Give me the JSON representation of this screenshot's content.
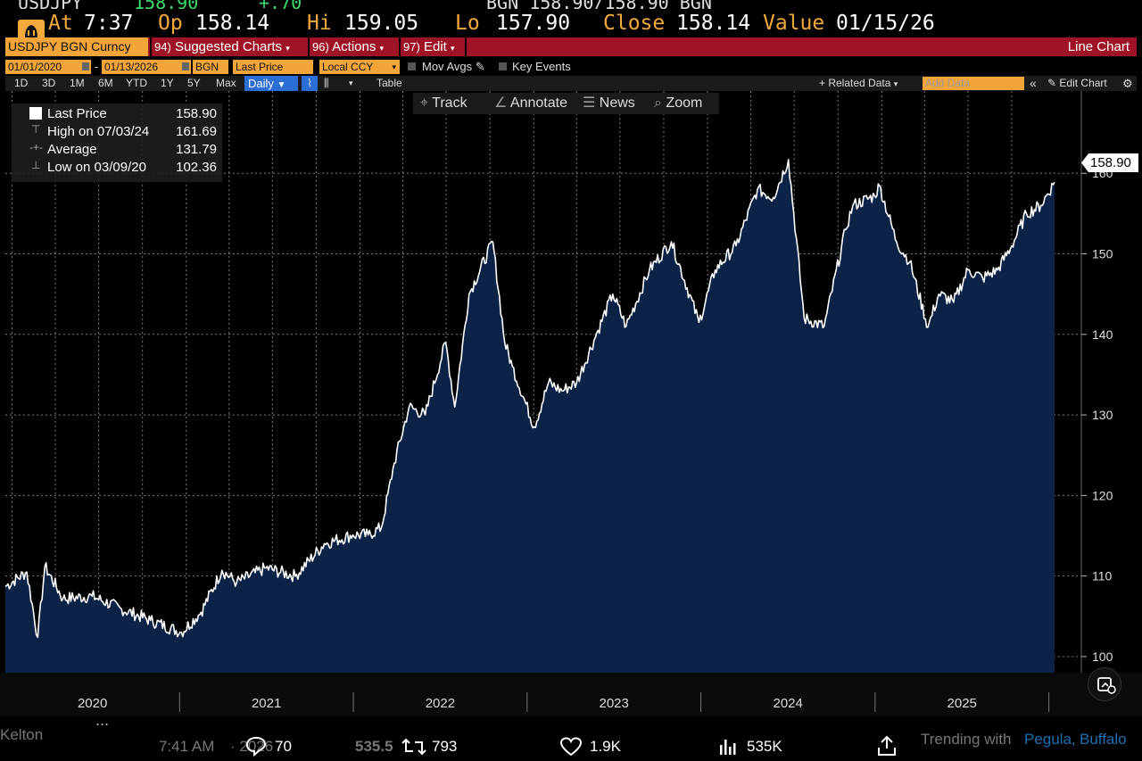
{
  "quote": {
    "ticker_partial": "USDJPY",
    "last_partial": "158.90",
    "chg_partial": "+.70",
    "bgn_partial": "BGN 158.90/158.90 BGN",
    "at_label": "At",
    "at_value": "7:37",
    "op_label": "Op",
    "op_value": "158.14",
    "hi_label": "Hi",
    "hi_value": "159.05",
    "lo_label": "Lo",
    "lo_value": "157.90",
    "close_label": "Close",
    "close_value": "158.14",
    "value_label": "Value",
    "value_date": "01/15/26"
  },
  "toolbar": {
    "ticker": "USDJPY BGN Curncy",
    "suggested_num": "94)",
    "suggested": "Suggested Charts",
    "actions_num": "96)",
    "actions": "Actions",
    "edit_num": "97)",
    "edit": "Edit",
    "title": "Line Chart"
  },
  "settings": {
    "start_date": "01/01/2020",
    "dash": "-",
    "end_date": "01/13/2026",
    "source": "BGN",
    "field": "Last Price",
    "currency": "Local CCY",
    "mov_avgs": "Mov Avgs",
    "key_events": "Key Events"
  },
  "ranges": {
    "items": [
      "1D",
      "3D",
      "1M",
      "6M",
      "YTD",
      "1Y",
      "5Y",
      "Max"
    ],
    "frequency": "Daily",
    "table": "Table",
    "related": "+ Related Data",
    "add_data_placeholder": "Add Data",
    "edit_chart": "Edit Chart"
  },
  "tools": {
    "track": "Track",
    "annotate": "Annotate",
    "news": "News",
    "zoom": "Zoom"
  },
  "legend": {
    "last_label": "Last Price",
    "last_value": "158.90",
    "high_label": "High on 07/03/24",
    "high_value": "161.69",
    "avg_label": "Average",
    "avg_value": "131.79",
    "low_label": "Low on 03/09/20",
    "low_value": "102.36"
  },
  "last_tag": "158.90",
  "chart_data": {
    "type": "area",
    "series": [
      {
        "name": "Last Price",
        "x": [
          "2020-01-01",
          "2020-02-15",
          "2020-03-09",
          "2020-03-24",
          "2020-05-01",
          "2020-07-01",
          "2020-09-01",
          "2020-11-01",
          "2021-01-05",
          "2021-02-15",
          "2021-03-31",
          "2021-05-01",
          "2021-07-01",
          "2021-09-01",
          "2021-11-01",
          "2021-12-31",
          "2022-02-01",
          "2022-03-01",
          "2022-03-28",
          "2022-04-28",
          "2022-06-01",
          "2022-07-14",
          "2022-08-02",
          "2022-09-01",
          "2022-10-21",
          "2022-11-15",
          "2022-12-01",
          "2023-01-16",
          "2023-02-15",
          "2023-03-15",
          "2023-04-15",
          "2023-05-30",
          "2023-06-30",
          "2023-07-28",
          "2023-09-15",
          "2023-10-31",
          "2023-12-28",
          "2024-01-31",
          "2024-03-15",
          "2024-04-29",
          "2024-06-01",
          "2024-07-03",
          "2024-08-05",
          "2024-09-16",
          "2024-10-31",
          "2024-11-15",
          "2024-12-31",
          "2025-01-10",
          "2025-02-15",
          "2025-03-15",
          "2025-04-22",
          "2025-05-15",
          "2025-06-15",
          "2025-07-15",
          "2025-08-15",
          "2025-09-15",
          "2025-10-15",
          "2025-11-15",
          "2025-12-15",
          "2026-01-13"
        ],
        "values": [
          108.7,
          110.5,
          102.4,
          111.2,
          107.2,
          107.5,
          105.9,
          104.5,
          103.0,
          105.5,
          110.7,
          109.2,
          111.0,
          110.0,
          114.0,
          115.1,
          115.1,
          116.0,
          124.0,
          131.0,
          130.0,
          139.0,
          131.0,
          145.0,
          151.5,
          139.0,
          136.0,
          128.5,
          134.0,
          133.0,
          134.0,
          140.5,
          145.0,
          141.0,
          148.0,
          151.5,
          141.5,
          148.0,
          151.0,
          158.0,
          157.0,
          161.7,
          142.0,
          141.0,
          153.0,
          156.0,
          157.2,
          158.5,
          151.5,
          149.0,
          140.9,
          145.0,
          144.0,
          148.0,
          147.0,
          148.0,
          151.0,
          155.0,
          156.0,
          158.9
        ]
      }
    ],
    "x_ticks": [
      "2020",
      "2021",
      "2022",
      "2023",
      "2024",
      "2025"
    ],
    "y_ticks": [
      100,
      110,
      120,
      130,
      140,
      150,
      160
    ],
    "ylim": [
      98,
      168
    ],
    "xlim": [
      "2020-01-01",
      "2026-01-13"
    ],
    "grid": true,
    "legend_placement": "top-left",
    "colors": {
      "line": "#ffffff",
      "fill": "#0c2347",
      "grid": "#7a7a7a",
      "accent": "#f4a93c",
      "bar": "#9e1426"
    }
  },
  "footer": {
    "handle_partial": "Kelton",
    "more": "...",
    "time": "7:41 AM",
    "date_partial": "· 2026 ·",
    "views_partial": "535.5",
    "replies": "70",
    "reposts": "793",
    "likes": "1.9K",
    "views": "535K",
    "trending_label": "Trending with",
    "trending_1": "Pegula,",
    "trending_2": "Buffalo"
  }
}
